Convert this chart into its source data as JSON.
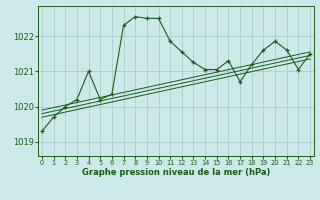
{
  "title": "Graphe pression niveau de la mer (hPa)",
  "bg_color": "#cce8e8",
  "grid_color": "#aacccc",
  "line_color": "#1a5c1a",
  "xlim": [
    -0.3,
    23.3
  ],
  "ylim": [
    1018.6,
    1022.85
  ],
  "yticks": [
    1019,
    1020,
    1021,
    1022
  ],
  "xticks": [
    0,
    1,
    2,
    3,
    4,
    5,
    6,
    7,
    8,
    9,
    10,
    11,
    12,
    13,
    14,
    15,
    16,
    17,
    18,
    19,
    20,
    21,
    22,
    23
  ],
  "series_main": {
    "x": [
      0,
      1,
      2,
      3,
      4,
      5,
      6,
      7,
      8,
      9,
      10,
      11,
      12,
      13,
      14,
      15,
      16,
      17,
      18,
      19,
      20,
      21,
      22,
      23
    ],
    "y": [
      1019.3,
      1019.7,
      1020.0,
      1020.2,
      1021.0,
      1020.2,
      1020.35,
      1022.3,
      1022.55,
      1022.5,
      1022.5,
      1021.85,
      1021.55,
      1021.25,
      1021.05,
      1021.05,
      1021.3,
      1020.7,
      1021.2,
      1021.6,
      1021.85,
      1021.6,
      1021.05,
      1021.5
    ]
  },
  "trend1": {
    "x": [
      0,
      23
    ],
    "y": [
      1019.9,
      1021.55
    ]
  },
  "trend2": {
    "x": [
      0,
      23
    ],
    "y": [
      1019.8,
      1021.45
    ]
  },
  "trend3": {
    "x": [
      0,
      23
    ],
    "y": [
      1019.7,
      1021.35
    ]
  }
}
